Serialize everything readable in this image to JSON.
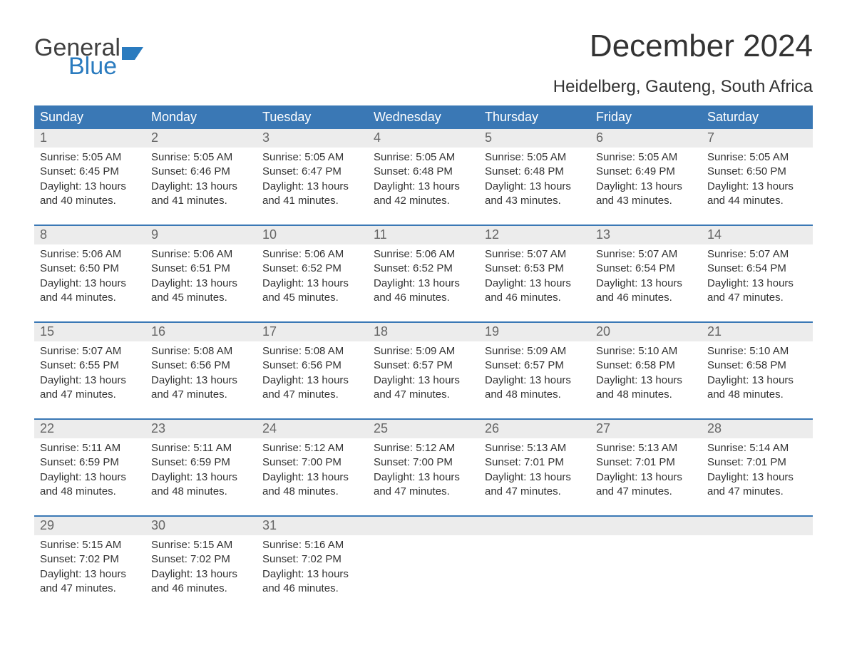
{
  "logo": {
    "line1": "General",
    "line2": "Blue"
  },
  "title": "December 2024",
  "location": "Heidelberg, Gauteng, South Africa",
  "colors": {
    "header_bg": "#3a78b5",
    "header_text": "#ffffff",
    "daynum_bg": "#ececec",
    "daynum_text": "#666666",
    "body_text": "#333333",
    "week_border": "#3a78b5",
    "logo_gray": "#404040",
    "logo_blue": "#2a7bbf"
  },
  "day_names": [
    "Sunday",
    "Monday",
    "Tuesday",
    "Wednesday",
    "Thursday",
    "Friday",
    "Saturday"
  ],
  "labels": {
    "sunrise": "Sunrise: ",
    "sunset": "Sunset: ",
    "daylight": "Daylight: "
  },
  "weeks": [
    [
      {
        "n": "1",
        "sunrise": "5:05 AM",
        "sunset": "6:45 PM",
        "daylight": "13 hours and 40 minutes."
      },
      {
        "n": "2",
        "sunrise": "5:05 AM",
        "sunset": "6:46 PM",
        "daylight": "13 hours and 41 minutes."
      },
      {
        "n": "3",
        "sunrise": "5:05 AM",
        "sunset": "6:47 PM",
        "daylight": "13 hours and 41 minutes."
      },
      {
        "n": "4",
        "sunrise": "5:05 AM",
        "sunset": "6:48 PM",
        "daylight": "13 hours and 42 minutes."
      },
      {
        "n": "5",
        "sunrise": "5:05 AM",
        "sunset": "6:48 PM",
        "daylight": "13 hours and 43 minutes."
      },
      {
        "n": "6",
        "sunrise": "5:05 AM",
        "sunset": "6:49 PM",
        "daylight": "13 hours and 43 minutes."
      },
      {
        "n": "7",
        "sunrise": "5:05 AM",
        "sunset": "6:50 PM",
        "daylight": "13 hours and 44 minutes."
      }
    ],
    [
      {
        "n": "8",
        "sunrise": "5:06 AM",
        "sunset": "6:50 PM",
        "daylight": "13 hours and 44 minutes."
      },
      {
        "n": "9",
        "sunrise": "5:06 AM",
        "sunset": "6:51 PM",
        "daylight": "13 hours and 45 minutes."
      },
      {
        "n": "10",
        "sunrise": "5:06 AM",
        "sunset": "6:52 PM",
        "daylight": "13 hours and 45 minutes."
      },
      {
        "n": "11",
        "sunrise": "5:06 AM",
        "sunset": "6:52 PM",
        "daylight": "13 hours and 46 minutes."
      },
      {
        "n": "12",
        "sunrise": "5:07 AM",
        "sunset": "6:53 PM",
        "daylight": "13 hours and 46 minutes."
      },
      {
        "n": "13",
        "sunrise": "5:07 AM",
        "sunset": "6:54 PM",
        "daylight": "13 hours and 46 minutes."
      },
      {
        "n": "14",
        "sunrise": "5:07 AM",
        "sunset": "6:54 PM",
        "daylight": "13 hours and 47 minutes."
      }
    ],
    [
      {
        "n": "15",
        "sunrise": "5:07 AM",
        "sunset": "6:55 PM",
        "daylight": "13 hours and 47 minutes."
      },
      {
        "n": "16",
        "sunrise": "5:08 AM",
        "sunset": "6:56 PM",
        "daylight": "13 hours and 47 minutes."
      },
      {
        "n": "17",
        "sunrise": "5:08 AM",
        "sunset": "6:56 PM",
        "daylight": "13 hours and 47 minutes."
      },
      {
        "n": "18",
        "sunrise": "5:09 AM",
        "sunset": "6:57 PM",
        "daylight": "13 hours and 47 minutes."
      },
      {
        "n": "19",
        "sunrise": "5:09 AM",
        "sunset": "6:57 PM",
        "daylight": "13 hours and 48 minutes."
      },
      {
        "n": "20",
        "sunrise": "5:10 AM",
        "sunset": "6:58 PM",
        "daylight": "13 hours and 48 minutes."
      },
      {
        "n": "21",
        "sunrise": "5:10 AM",
        "sunset": "6:58 PM",
        "daylight": "13 hours and 48 minutes."
      }
    ],
    [
      {
        "n": "22",
        "sunrise": "5:11 AM",
        "sunset": "6:59 PM",
        "daylight": "13 hours and 48 minutes."
      },
      {
        "n": "23",
        "sunrise": "5:11 AM",
        "sunset": "6:59 PM",
        "daylight": "13 hours and 48 minutes."
      },
      {
        "n": "24",
        "sunrise": "5:12 AM",
        "sunset": "7:00 PM",
        "daylight": "13 hours and 48 minutes."
      },
      {
        "n": "25",
        "sunrise": "5:12 AM",
        "sunset": "7:00 PM",
        "daylight": "13 hours and 47 minutes."
      },
      {
        "n": "26",
        "sunrise": "5:13 AM",
        "sunset": "7:01 PM",
        "daylight": "13 hours and 47 minutes."
      },
      {
        "n": "27",
        "sunrise": "5:13 AM",
        "sunset": "7:01 PM",
        "daylight": "13 hours and 47 minutes."
      },
      {
        "n": "28",
        "sunrise": "5:14 AM",
        "sunset": "7:01 PM",
        "daylight": "13 hours and 47 minutes."
      }
    ],
    [
      {
        "n": "29",
        "sunrise": "5:15 AM",
        "sunset": "7:02 PM",
        "daylight": "13 hours and 47 minutes."
      },
      {
        "n": "30",
        "sunrise": "5:15 AM",
        "sunset": "7:02 PM",
        "daylight": "13 hours and 46 minutes."
      },
      {
        "n": "31",
        "sunrise": "5:16 AM",
        "sunset": "7:02 PM",
        "daylight": "13 hours and 46 minutes."
      },
      null,
      null,
      null,
      null
    ]
  ]
}
